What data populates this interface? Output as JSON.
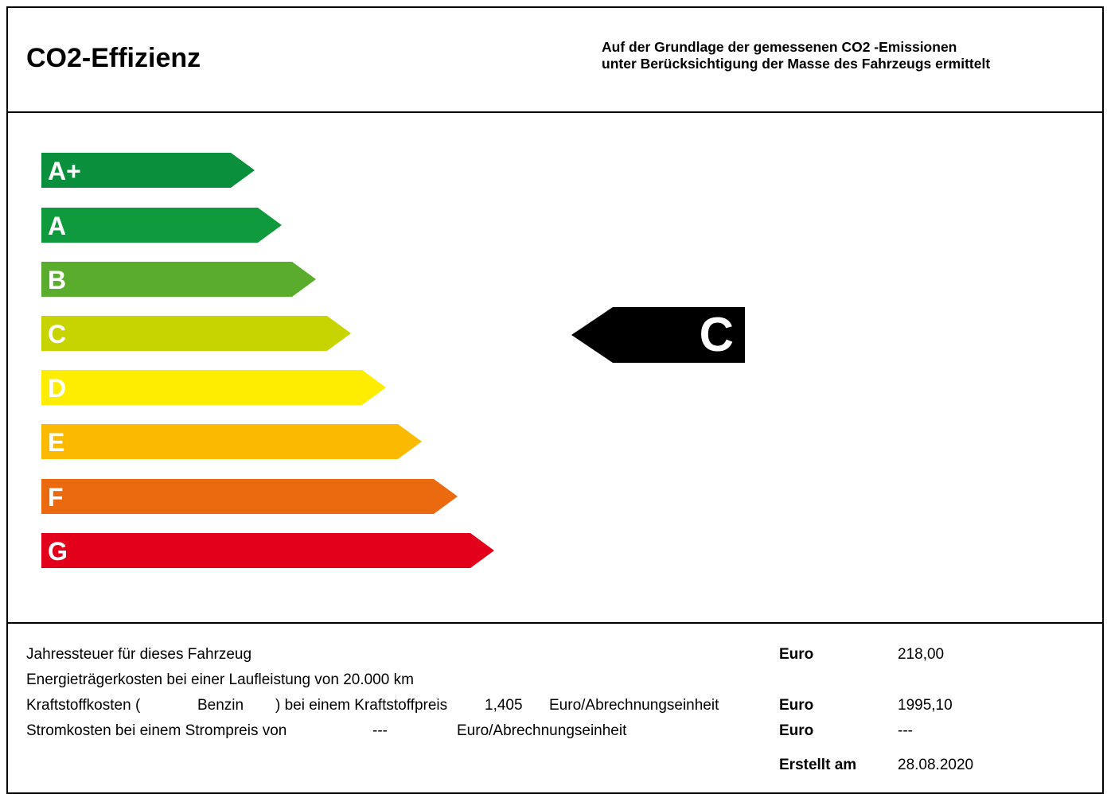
{
  "header": {
    "title": "CO2-Effizienz",
    "subtitle_line1": "Auf der Grundlage der gemessenen CO2 -Emissionen",
    "subtitle_line2": "unter Berücksichtigung der Masse des Fahrzeugs ermittelt"
  },
  "scale": {
    "classes": [
      {
        "label": "A+",
        "color": "#0a8f3c"
      },
      {
        "label": "A",
        "color": "#0f9a3e"
      },
      {
        "label": "B",
        "color": "#5aac2c"
      },
      {
        "label": "C",
        "color": "#c8d400"
      },
      {
        "label": "D",
        "color": "#ffed00"
      },
      {
        "label": "E",
        "color": "#fbba00"
      },
      {
        "label": "F",
        "color": "#eb6a10"
      },
      {
        "label": "G",
        "color": "#e2001a"
      }
    ],
    "current_class": "C",
    "indicator_color": "#000000"
  },
  "footer": {
    "tax_label": "Jahressteuer für dieses Fahrzeug",
    "tax_currency": "Euro",
    "tax_value": "218,00",
    "energy_label": "Energieträgerkosten bei einer Laufleistung von 20.000 km",
    "fuel_prefix": "Kraftstoffkosten (",
    "fuel_type": "Benzin",
    "fuel_mid": ") bei einem Kraftstoffpreis",
    "fuel_price": "1,405",
    "fuel_unit": "Euro/Abrechnungseinheit",
    "fuel_currency": "Euro",
    "fuel_value": "1995,10",
    "power_label": "Stromkosten bei einem Strompreis von",
    "power_price": "---",
    "power_unit": "Euro/Abrechnungseinheit",
    "power_currency": "Euro",
    "power_value": "---",
    "created_label": "Erstellt am",
    "created_value": "28.08.2020"
  }
}
